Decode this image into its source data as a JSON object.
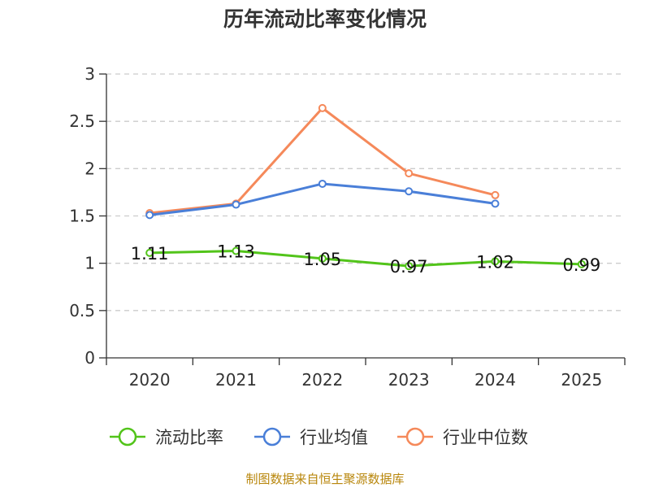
{
  "chart_data": {
    "type": "line",
    "title": "历年流动比率变化情况",
    "categories": [
      "2020",
      "2021",
      "2022",
      "2023",
      "2024",
      "2025"
    ],
    "ylim": [
      0,
      3
    ],
    "yticks": [
      "0",
      "0.5",
      "1",
      "1.5",
      "2",
      "2.5",
      "3"
    ],
    "ytick_values": [
      0,
      0.5,
      1,
      1.5,
      2,
      2.5,
      3
    ],
    "grid": true,
    "legend_position": "bottom",
    "series": [
      {
        "name": "流动比率",
        "color": "#52c41a",
        "values": [
          1.11,
          1.13,
          1.05,
          0.97,
          1.02,
          0.99
        ],
        "labels": [
          "1.11",
          "1.13",
          "1.05",
          "0.97",
          "1.02",
          "0.99"
        ]
      },
      {
        "name": "行业均值",
        "color": "#4a7fd8",
        "values": [
          1.51,
          1.62,
          1.84,
          1.76,
          1.63,
          null
        ]
      },
      {
        "name": "行业中位数",
        "color": "#f5895a",
        "values": [
          1.53,
          1.63,
          2.64,
          1.95,
          1.72,
          null
        ]
      }
    ]
  },
  "source_text": "制图数据来自恒生聚源数据库"
}
